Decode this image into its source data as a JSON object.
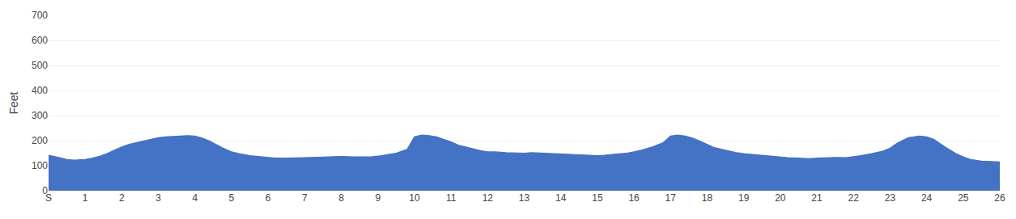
{
  "chart_data": {
    "type": "area",
    "ylabel": "Feet",
    "x": [
      0.0,
      0.1,
      0.3,
      0.5,
      0.7,
      1.0,
      1.2,
      1.4,
      1.6,
      1.8,
      2.0,
      2.2,
      2.5,
      2.8,
      3.0,
      3.2,
      3.5,
      3.8,
      4.0,
      4.2,
      4.4,
      4.6,
      4.8,
      5.0,
      5.2,
      5.5,
      5.8,
      6.0,
      6.2,
      6.5,
      6.8,
      7.0,
      7.2,
      7.5,
      7.8,
      8.0,
      8.2,
      8.5,
      8.8,
      9.0,
      9.2,
      9.5,
      9.8,
      10.0,
      10.2,
      10.4,
      10.6,
      10.8,
      11.0,
      11.2,
      11.5,
      11.8,
      12.0,
      12.2,
      12.5,
      12.8,
      13.0,
      13.2,
      13.5,
      13.8,
      14.0,
      14.2,
      14.5,
      14.8,
      15.0,
      15.2,
      15.5,
      15.8,
      16.0,
      16.2,
      16.5,
      16.8,
      17.0,
      17.2,
      17.4,
      17.6,
      17.8,
      18.0,
      18.2,
      18.5,
      18.8,
      19.0,
      19.2,
      19.5,
      19.8,
      20.0,
      20.2,
      20.5,
      20.8,
      21.0,
      21.2,
      21.5,
      21.8,
      22.0,
      22.2,
      22.5,
      22.8,
      23.0,
      23.2,
      23.5,
      23.8,
      24.0,
      24.2,
      24.5,
      24.8,
      25.0,
      25.2,
      25.5,
      25.8,
      26.0
    ],
    "series": [
      {
        "color": "#4472C4",
        "values": [
          142,
          138,
          132,
          125,
          122,
          125,
          130,
          138,
          148,
          162,
          175,
          185,
          195,
          205,
          212,
          215,
          218,
          220,
          218,
          210,
          198,
          182,
          168,
          155,
          148,
          140,
          135,
          132,
          130,
          130,
          130,
          132,
          133,
          135,
          136,
          137,
          136,
          135,
          135,
          138,
          142,
          150,
          165,
          215,
          222,
          220,
          215,
          205,
          195,
          182,
          170,
          160,
          155,
          155,
          152,
          150,
          150,
          152,
          150,
          148,
          145,
          143,
          142,
          140,
          140,
          142,
          145,
          150,
          155,
          162,
          175,
          192,
          218,
          222,
          218,
          210,
          198,
          185,
          172,
          162,
          152,
          148,
          145,
          142,
          138,
          135,
          132,
          130,
          128,
          130,
          132,
          133,
          132,
          135,
          140,
          148,
          158,
          170,
          190,
          212,
          218,
          215,
          205,
          175,
          148,
          135,
          125,
          118,
          115,
          115
        ]
      }
    ],
    "xlim": [
      0,
      26
    ],
    "xticks": [
      {
        "value": 0,
        "label": "S"
      },
      1,
      2,
      3,
      4,
      5,
      6,
      7,
      8,
      9,
      10,
      11,
      12,
      13,
      14,
      15,
      16,
      17,
      18,
      19,
      20,
      21,
      22,
      23,
      24,
      25,
      26
    ],
    "ylim": [
      0,
      700
    ],
    "yticks": [
      0,
      100,
      200,
      300,
      400,
      500,
      600,
      700
    ],
    "grid": "y"
  }
}
